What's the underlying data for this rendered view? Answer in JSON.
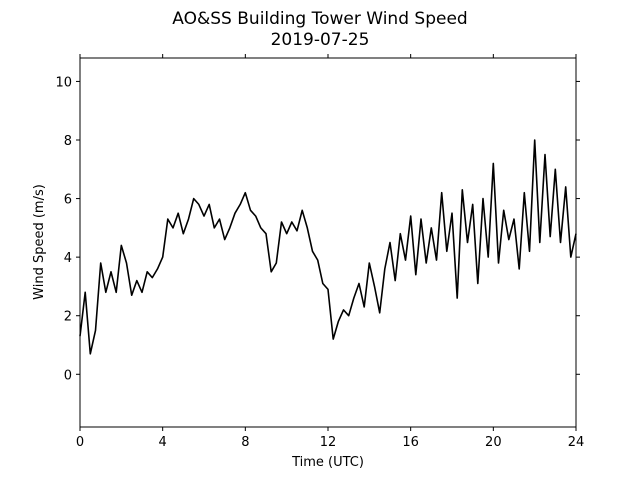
{
  "chart_data": {
    "type": "line",
    "title": "AO&SS Building Tower Wind Speed",
    "subtitle": "2019-07-25",
    "xlabel": "Time (UTC)",
    "ylabel": "Wind Speed (m/s)",
    "x": [
      0,
      0.25,
      0.5,
      0.75,
      1,
      1.25,
      1.5,
      1.75,
      2,
      2.25,
      2.5,
      2.75,
      3,
      3.25,
      3.5,
      3.75,
      4,
      4.25,
      4.5,
      4.75,
      5,
      5.25,
      5.5,
      5.75,
      6,
      6.25,
      6.5,
      6.75,
      7,
      7.25,
      7.5,
      7.75,
      8,
      8.25,
      8.5,
      8.75,
      9,
      9.25,
      9.5,
      9.75,
      10,
      10.25,
      10.5,
      10.75,
      11,
      11.25,
      11.5,
      11.75,
      12,
      12.25,
      12.5,
      12.75,
      13,
      13.25,
      13.5,
      13.75,
      14,
      14.25,
      14.5,
      14.75,
      15,
      15.25,
      15.5,
      15.75,
      16,
      16.25,
      16.5,
      16.75,
      17,
      17.25,
      17.5,
      17.75,
      18,
      18.25,
      18.5,
      18.75,
      19,
      19.25,
      19.5,
      19.75,
      20,
      20.25,
      20.5,
      20.75,
      21,
      21.25,
      21.5,
      21.75,
      22,
      22.25,
      22.5,
      22.75,
      23,
      23.25,
      23.5,
      23.75,
      24
    ],
    "series": [
      {
        "name": "Wind Speed",
        "color": "#000000",
        "values": [
          1.3,
          2.8,
          0.7,
          1.5,
          3.8,
          2.8,
          3.5,
          2.8,
          4.4,
          3.8,
          2.7,
          3.2,
          2.8,
          3.5,
          3.3,
          3.6,
          4.0,
          5.3,
          5.0,
          5.5,
          4.8,
          5.3,
          6.0,
          5.8,
          5.4,
          5.8,
          5.0,
          5.3,
          4.6,
          5.0,
          5.5,
          5.8,
          6.2,
          5.6,
          5.4,
          5.0,
          4.8,
          3.5,
          3.8,
          5.2,
          4.8,
          5.2,
          4.9,
          5.6,
          5.0,
          4.2,
          3.9,
          3.1,
          2.9,
          1.2,
          1.8,
          2.2,
          2.0,
          2.6,
          3.1,
          2.3,
          3.8,
          3.0,
          2.1,
          3.6,
          4.5,
          3.2,
          4.8,
          3.9,
          5.4,
          3.4,
          5.3,
          3.8,
          5.0,
          3.9,
          6.2,
          4.2,
          5.5,
          2.6,
          6.3,
          4.5,
          5.8,
          3.1,
          6.0,
          4.0,
          7.2,
          3.8,
          5.6,
          4.6,
          5.3,
          3.6,
          6.2,
          4.2,
          8.0,
          4.5,
          7.5,
          4.7,
          7.0,
          4.5,
          6.4,
          4.0,
          4.8
        ]
      }
    ],
    "xlim": [
      0,
      24
    ],
    "xticks": [
      0,
      4,
      8,
      12,
      16,
      20,
      24
    ],
    "ylim": [
      -1.8,
      10.8
    ],
    "yticks": [
      0,
      2,
      4,
      6,
      8,
      10
    ],
    "grid": false
  }
}
